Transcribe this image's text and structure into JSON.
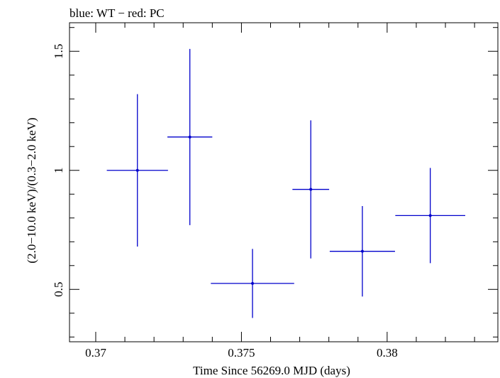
{
  "chart_data": {
    "type": "scatter",
    "title": "blue: WT − red: PC",
    "xlabel": "Time Since 56269.0 MJD (days)",
    "ylabel": "(2.0−10.0 keV)/(0.3−2.0 keV)",
    "xlim": [
      0.3691,
      0.3838
    ],
    "ylim": [
      0.28,
      1.62
    ],
    "x_ticks": [
      {
        "value": 0.37,
        "label": "0.37"
      },
      {
        "value": 0.375,
        "label": "0.375"
      },
      {
        "value": 0.38,
        "label": "0.38"
      }
    ],
    "y_ticks": [
      {
        "value": 0.5,
        "label": "0.5"
      },
      {
        "value": 1.0,
        "label": "1"
      },
      {
        "value": 1.5,
        "label": "1.5"
      }
    ],
    "grid": false,
    "series": [
      {
        "color": "#0000cc",
        "points": [
          {
            "x": 0.37143,
            "y": 1.0,
            "xerr": 0.00105,
            "yerr_low": 0.32,
            "yerr_high": 0.32
          },
          {
            "x": 0.37323,
            "y": 1.14,
            "xerr": 0.00077,
            "yerr_low": 0.37,
            "yerr_high": 0.37
          },
          {
            "x": 0.37538,
            "y": 0.525,
            "xerr": 0.00143,
            "yerr_low": 0.145,
            "yerr_high": 0.145
          },
          {
            "x": 0.37738,
            "y": 0.92,
            "xerr": 0.00063,
            "yerr_low": 0.29,
            "yerr_high": 0.29
          },
          {
            "x": 0.37915,
            "y": 0.66,
            "xerr": 0.00112,
            "yerr_low": 0.19,
            "yerr_high": 0.19
          },
          {
            "x": 0.38148,
            "y": 0.81,
            "xerr": 0.0012,
            "yerr_low": 0.2,
            "yerr_high": 0.2
          }
        ]
      }
    ]
  }
}
